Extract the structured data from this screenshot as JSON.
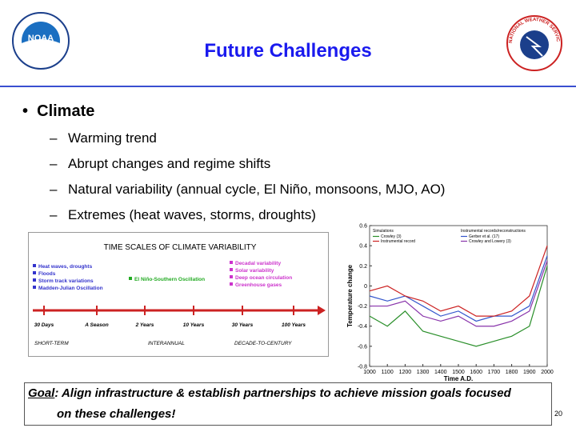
{
  "header": {
    "title": "Future Challenges",
    "left_logo": "NOAA",
    "right_logo": "NATIONAL WEATHER SERVICE"
  },
  "bullets": {
    "main": "Climate",
    "items": [
      "Warming trend",
      "Abrupt changes and regime shifts",
      "Natural variability (annual cycle, El Niño, monsoons, MJO, AO)",
      "Extremes (heat waves, storms, droughts)"
    ]
  },
  "diagram": {
    "title": "TIME SCALES OF CLIMATE VARIABILITY",
    "left_items": [
      "Heat waves, droughts",
      "Floods",
      "Storm track variations",
      "Madden-Julian Oscillation"
    ],
    "middle_item": "El Niño-Southern Oscillation",
    "right_items": [
      "Decadal variability",
      "Solar variability",
      "Deep ocean circulation",
      "Greenhouse gases"
    ],
    "timeline": [
      "30 Days",
      "A Season",
      "2 Years",
      "10 Years",
      "30 Years",
      "100 Years"
    ],
    "ranges": [
      "SHORT-TERM",
      "INTERANNUAL",
      "DECADE-TO-CENTURY"
    ]
  },
  "chart": {
    "type": "line",
    "y_label": "Temperature change",
    "x_label": "Time A.D.",
    "legend_headers": [
      "Simulations",
      "Instrumental records/reconstructions"
    ],
    "x": [
      1000,
      1100,
      1200,
      1300,
      1400,
      1500,
      1600,
      1700,
      1800,
      1900,
      2000
    ],
    "series": [
      {
        "name": "Crowley (3)",
        "color": "#2a8f2a",
        "values": [
          -0.3,
          -0.4,
          -0.25,
          -0.45,
          -0.5,
          -0.55,
          -0.6,
          -0.55,
          -0.5,
          -0.4,
          0.2
        ]
      },
      {
        "name": "Gerber et al. (17)",
        "color": "#3355cc",
        "values": [
          -0.1,
          -0.15,
          -0.1,
          -0.2,
          -0.3,
          -0.25,
          -0.35,
          -0.3,
          -0.3,
          -0.2,
          0.3
        ]
      },
      {
        "name": "Instrumental record",
        "color": "#cc2222",
        "values": [
          -0.05,
          0,
          -0.1,
          -0.15,
          -0.25,
          -0.2,
          -0.3,
          -0.3,
          -0.25,
          -0.1,
          0.4
        ]
      },
      {
        "name": "Crowley and Lowery (3)",
        "color": "#8833aa",
        "values": [
          -0.2,
          -0.2,
          -0.15,
          -0.3,
          -0.35,
          -0.3,
          -0.4,
          -0.4,
          -0.35,
          -0.25,
          0.25
        ]
      }
    ],
    "xlim": [
      1000,
      2000
    ],
    "ylim": [
      -0.8,
      0.6
    ],
    "xticks": [
      1000,
      1100,
      1200,
      1300,
      1400,
      1500,
      1600,
      1700,
      1800,
      1900,
      2000
    ],
    "yticks": [
      -0.8,
      -0.6,
      -0.4,
      -0.2,
      0,
      0.2,
      0.4,
      0.6
    ]
  },
  "footer": {
    "goal_label": "Goal",
    "goal_text_1": ": Align infrastructure & establish partnerships to achieve mission goals focused",
    "goal_text_2": "on these challenges!",
    "page": "20"
  }
}
